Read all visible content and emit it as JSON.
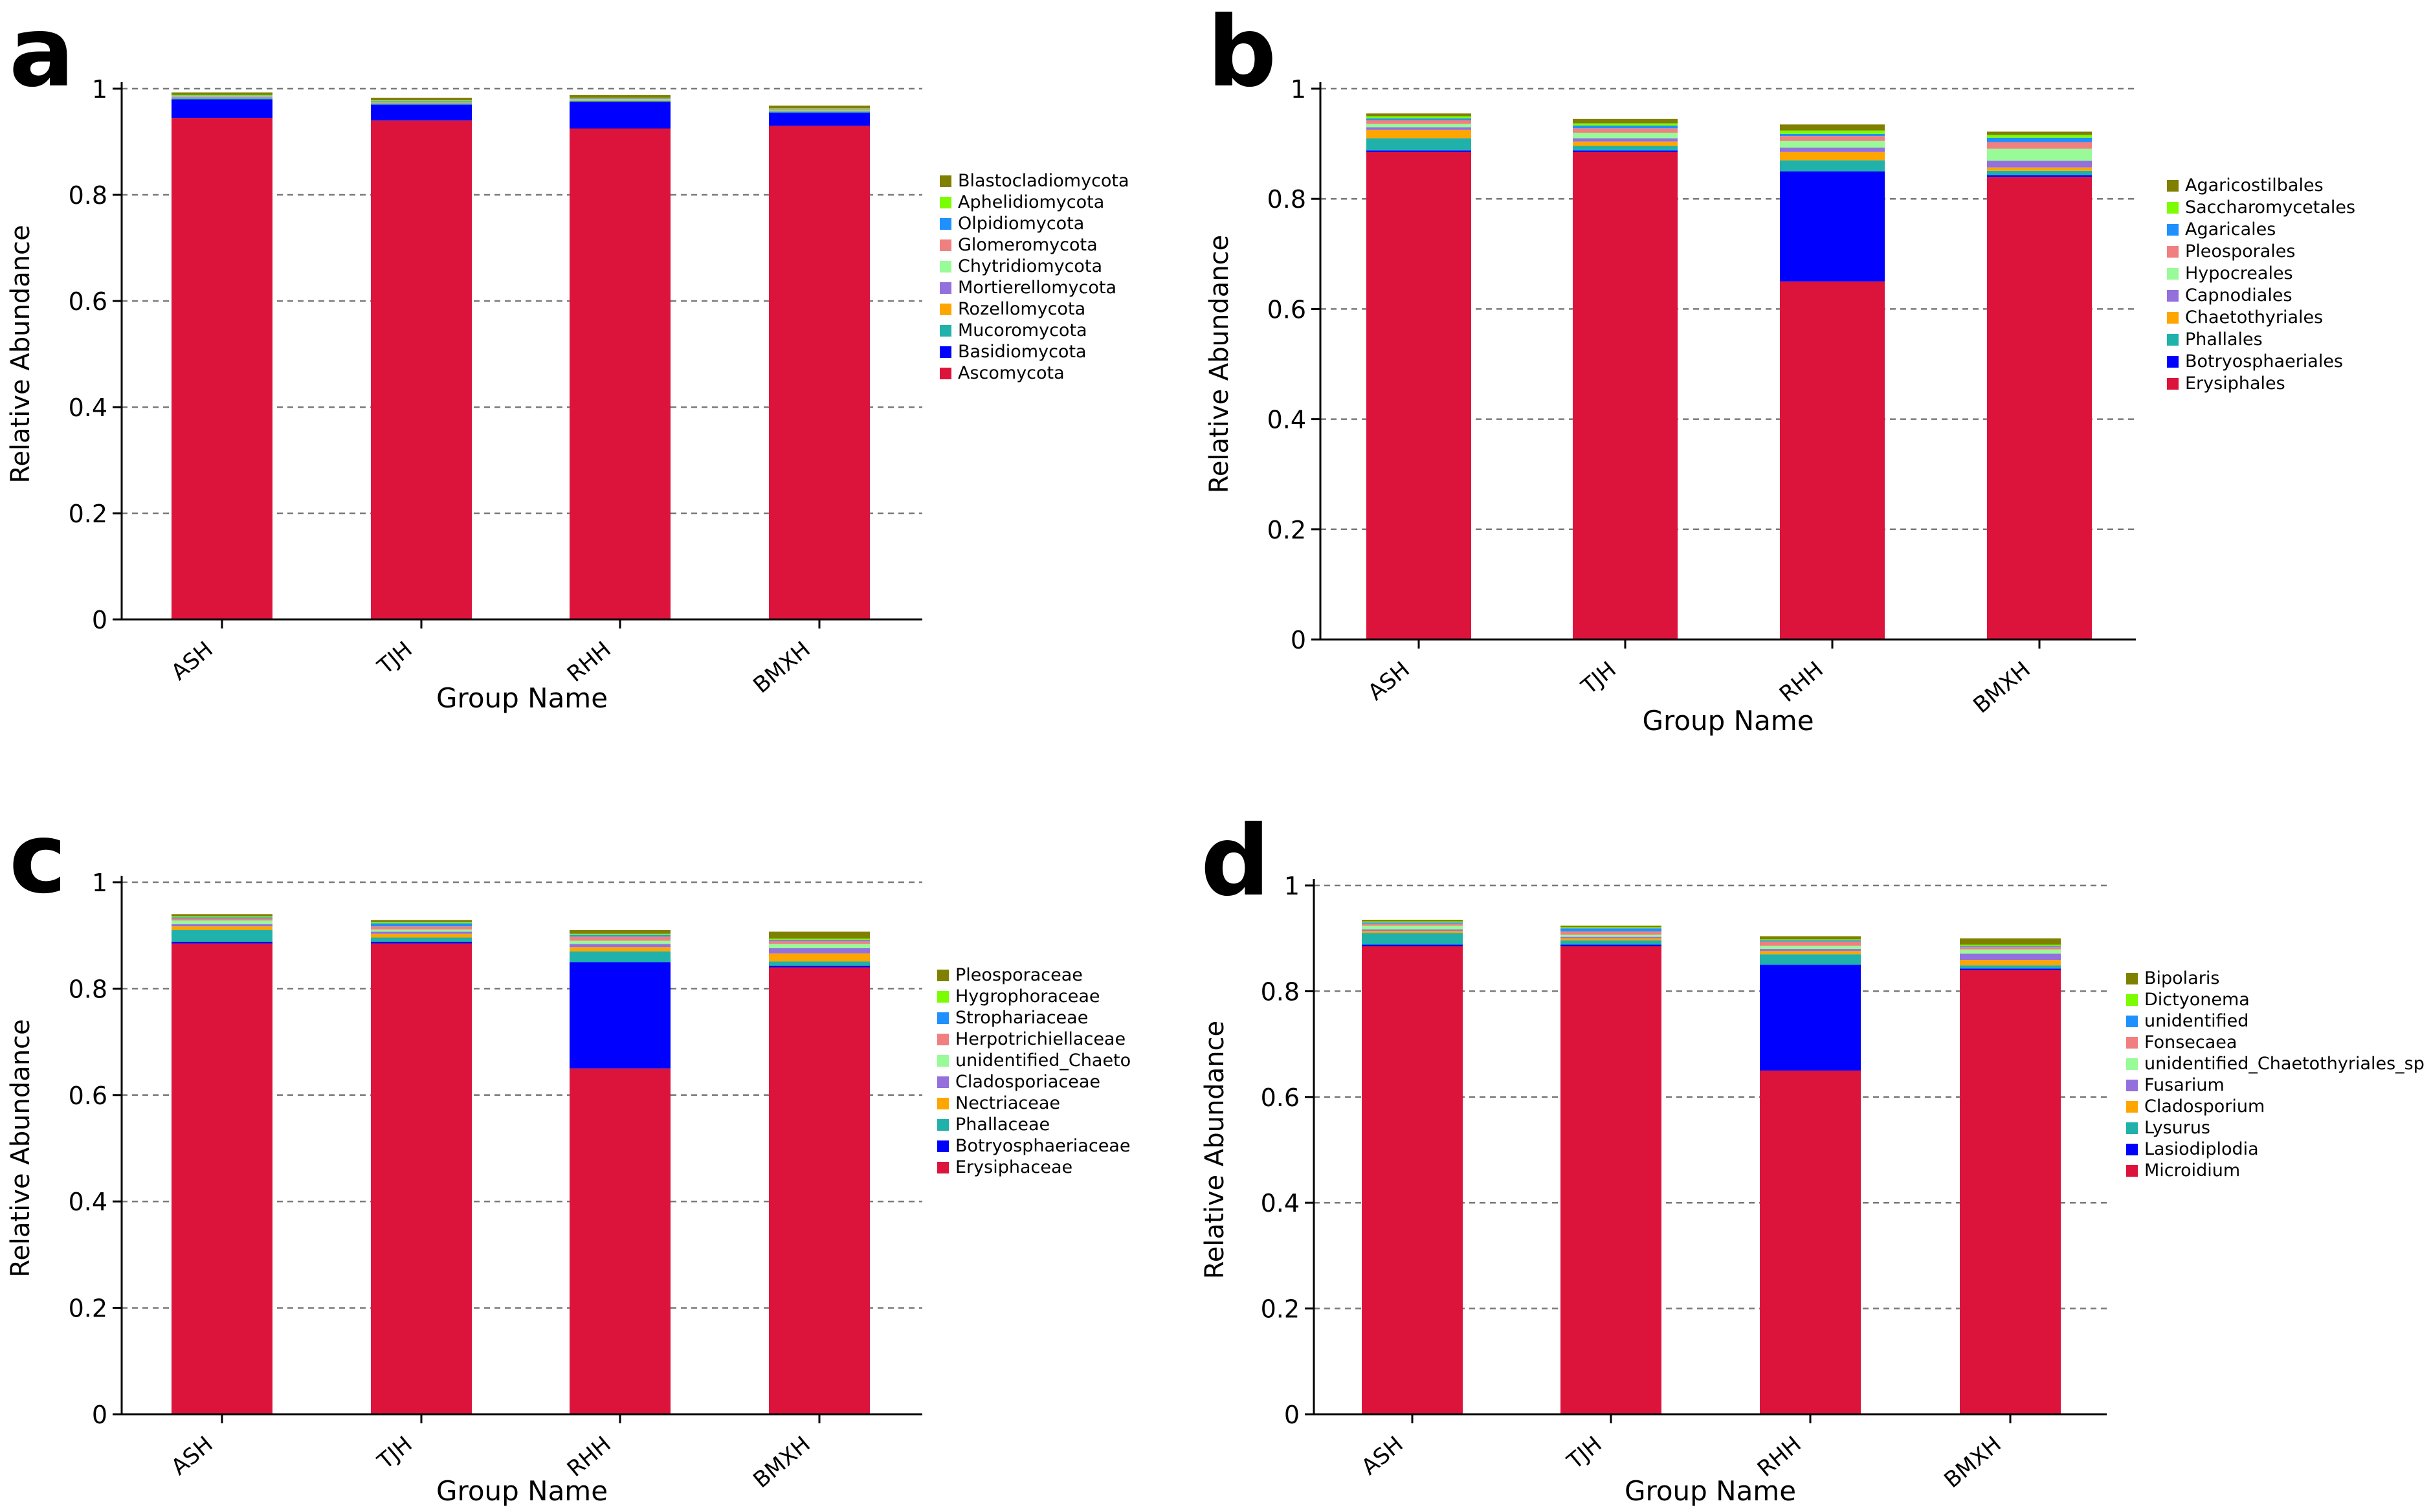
{
  "chart_data": [
    {
      "panel_label": "a",
      "type": "stacked-bar",
      "title": "",
      "xlabel": "Group Name",
      "ylabel": "Relative Abundance",
      "ylim": [
        0,
        1
      ],
      "yticks": [
        0,
        0.2,
        0.4,
        0.6,
        0.8,
        1
      ],
      "ytick_labels": [
        "0",
        "0.2",
        "0.4",
        "0.6",
        "0.8",
        "1"
      ],
      "grid": true,
      "legend_position": "right",
      "categories": [
        "ASH",
        "TJH",
        "RHH",
        "BMXH"
      ],
      "series": [
        {
          "name": "Ascomycota",
          "color": "#DC143C",
          "values": [
            0.945,
            0.94,
            0.925,
            0.93
          ]
        },
        {
          "name": "Basidiomycota",
          "color": "#0000FF",
          "values": [
            0.035,
            0.03,
            0.05,
            0.025
          ]
        },
        {
          "name": "Mucoromycota",
          "color": "#20B2AA",
          "values": [
            0.002,
            0.002,
            0.002,
            0.002
          ]
        },
        {
          "name": "Rozellomycota",
          "color": "#FFA500",
          "values": [
            0.001,
            0.001,
            0.001,
            0.001
          ]
        },
        {
          "name": "Mortierellomycota",
          "color": "#9370DB",
          "values": [
            0.001,
            0.001,
            0.001,
            0.001
          ]
        },
        {
          "name": "Chytridiomycota",
          "color": "#98FB98",
          "values": [
            0.001,
            0.001,
            0.001,
            0.001
          ]
        },
        {
          "name": "Glomeromycota",
          "color": "#F08080",
          "values": [
            0.001,
            0.001,
            0.001,
            0.001
          ]
        },
        {
          "name": "Olpidiomycota",
          "color": "#1E90FF",
          "values": [
            0.001,
            0.001,
            0.001,
            0.001
          ]
        },
        {
          "name": "Aphelidiomycota",
          "color": "#7CFC00",
          "values": [
            0.001,
            0.001,
            0.001,
            0.001
          ]
        },
        {
          "name": "Blastocladiomycota",
          "color": "#808000",
          "values": [
            0.005,
            0.005,
            0.005,
            0.005
          ]
        }
      ]
    },
    {
      "panel_label": "b",
      "type": "stacked-bar",
      "title": "",
      "xlabel": "Group Name",
      "ylabel": "Relative Abundance",
      "ylim": [
        0,
        1
      ],
      "yticks": [
        0,
        0.2,
        0.4,
        0.6,
        0.8,
        1
      ],
      "ytick_labels": [
        "0",
        "0.2",
        "0.4",
        "0.6",
        "0.8",
        "1"
      ],
      "grid": true,
      "legend_position": "right",
      "categories": [
        "ASH",
        "TJH",
        "RHH",
        "BMXH"
      ],
      "series": [
        {
          "name": "Erysiphales",
          "color": "#DC143C",
          "values": [
            0.885,
            0.885,
            0.65,
            0.84
          ]
        },
        {
          "name": "Botryosphaeriales",
          "color": "#0000FF",
          "values": [
            0.003,
            0.003,
            0.2,
            0.003
          ]
        },
        {
          "name": "Phallales",
          "color": "#20B2AA",
          "values": [
            0.022,
            0.008,
            0.02,
            0.008
          ]
        },
        {
          "name": "Chaetothyriales",
          "color": "#FFA500",
          "values": [
            0.015,
            0.008,
            0.015,
            0.006
          ]
        },
        {
          "name": "Capnodiales",
          "color": "#9370DB",
          "values": [
            0.005,
            0.006,
            0.008,
            0.012
          ]
        },
        {
          "name": "Hypocreales",
          "color": "#98FB98",
          "values": [
            0.006,
            0.01,
            0.012,
            0.022
          ]
        },
        {
          "name": "Pleosporales",
          "color": "#F08080",
          "values": [
            0.007,
            0.008,
            0.009,
            0.012
          ]
        },
        {
          "name": "Agaricales",
          "color": "#1E90FF",
          "values": [
            0.003,
            0.005,
            0.004,
            0.008
          ]
        },
        {
          "name": "Saccharomycetales",
          "color": "#7CFC00",
          "values": [
            0.004,
            0.004,
            0.006,
            0.005
          ]
        },
        {
          "name": "Agaricostilbales",
          "color": "#808000",
          "values": [
            0.005,
            0.008,
            0.011,
            0.006
          ]
        }
      ]
    },
    {
      "panel_label": "c",
      "type": "stacked-bar",
      "title": "",
      "xlabel": "Group Name",
      "ylabel": "Relative Abundance",
      "ylim": [
        0,
        1
      ],
      "yticks": [
        0,
        0.2,
        0.4,
        0.6,
        0.8,
        1
      ],
      "ytick_labels": [
        "0",
        "0.2",
        "0.4",
        "0.6",
        "0.8",
        "1"
      ],
      "grid": true,
      "legend_position": "right",
      "categories": [
        "ASH",
        "TJH",
        "RHH",
        "BMXH"
      ],
      "series": [
        {
          "name": "Erysiphaceae",
          "color": "#DC143C",
          "values": [
            0.885,
            0.885,
            0.65,
            0.84
          ]
        },
        {
          "name": "Botryosphaeriaceae",
          "color": "#0000FF",
          "values": [
            0.003,
            0.003,
            0.2,
            0.003
          ]
        },
        {
          "name": "Phallaceae",
          "color": "#20B2AA",
          "values": [
            0.022,
            0.008,
            0.02,
            0.008
          ]
        },
        {
          "name": "Nectriaceae",
          "color": "#FFA500",
          "values": [
            0.007,
            0.007,
            0.008,
            0.015
          ]
        },
        {
          "name": "Cladosporiaceae",
          "color": "#9370DB",
          "values": [
            0.004,
            0.004,
            0.006,
            0.01
          ]
        },
        {
          "name": "unidentified_Chaeto",
          "color": "#98FB98",
          "values": [
            0.007,
            0.004,
            0.006,
            0.008
          ]
        },
        {
          "name": "Herpotrichiellaceae",
          "color": "#F08080",
          "values": [
            0.004,
            0.006,
            0.008,
            0.006
          ]
        },
        {
          "name": "Strophariaceae",
          "color": "#1E90FF",
          "values": [
            0.002,
            0.006,
            0.003,
            0.002
          ]
        },
        {
          "name": "Hygrophoraceae",
          "color": "#7CFC00",
          "values": [
            0.002,
            0.002,
            0.002,
            0.002
          ]
        },
        {
          "name": "Pleosporaceae",
          "color": "#808000",
          "values": [
            0.004,
            0.004,
            0.007,
            0.013
          ]
        }
      ]
    },
    {
      "panel_label": "d",
      "type": "stacked-bar",
      "title": "",
      "xlabel": "Group Name",
      "ylabel": "Relative Abundance",
      "ylim": [
        0,
        1
      ],
      "yticks": [
        0,
        0.2,
        0.4,
        0.6,
        0.8,
        1
      ],
      "ytick_labels": [
        "0",
        "0.2",
        "0.4",
        "0.6",
        "0.8",
        "1"
      ],
      "grid": true,
      "legend_position": "right",
      "categories": [
        "ASH",
        "TJH",
        "RHH",
        "BMXH"
      ],
      "series": [
        {
          "name": "Microidium",
          "color": "#DC143C",
          "values": [
            0.885,
            0.885,
            0.65,
            0.84
          ]
        },
        {
          "name": "Lasiodiplodia",
          "color": "#0000FF",
          "values": [
            0.003,
            0.003,
            0.2,
            0.003
          ]
        },
        {
          "name": "Lysurus",
          "color": "#20B2AA",
          "values": [
            0.022,
            0.008,
            0.02,
            0.006
          ]
        },
        {
          "name": "Cladosporium",
          "color": "#FFA500",
          "values": [
            0.004,
            0.004,
            0.006,
            0.01
          ]
        },
        {
          "name": "Fusarium",
          "color": "#9370DB",
          "values": [
            0.003,
            0.003,
            0.004,
            0.012
          ]
        },
        {
          "name": "unidentified_Chaetothyriales_sp",
          "color": "#98FB98",
          "values": [
            0.007,
            0.004,
            0.006,
            0.008
          ]
        },
        {
          "name": "Fonsecaea",
          "color": "#F08080",
          "values": [
            0.004,
            0.006,
            0.008,
            0.005
          ]
        },
        {
          "name": "unidentified",
          "color": "#1E90FF",
          "values": [
            0.002,
            0.006,
            0.002,
            0.002
          ]
        },
        {
          "name": "Dictyonema",
          "color": "#7CFC00",
          "values": [
            0.002,
            0.002,
            0.002,
            0.002
          ]
        },
        {
          "name": "Bipolaris",
          "color": "#808000",
          "values": [
            0.003,
            0.003,
            0.006,
            0.012
          ]
        }
      ]
    }
  ]
}
